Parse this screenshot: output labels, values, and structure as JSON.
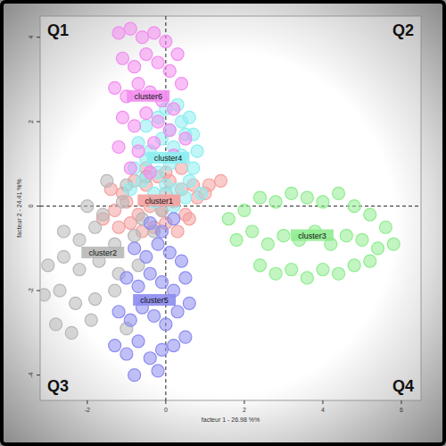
{
  "chart_data": {
    "type": "scatter",
    "x_label": "facteur 1 - 26.98 %%",
    "y_label": "facteur 2 - 24.41 %%",
    "annotations": [
      "Q1",
      "Q2",
      "Q3",
      "Q4"
    ],
    "xlim": [
      -3.2,
      6.5
    ],
    "ylim": [
      -4.6,
      4.5
    ],
    "xticks": [
      -2,
      0,
      2,
      4,
      6
    ],
    "yticks": [
      -4,
      -2,
      0,
      2,
      4
    ],
    "grid": false,
    "marker": "circle",
    "series": [
      {
        "name": "cluster1",
        "color": "#f4a0a0",
        "x": [
          -1.6,
          -1.3,
          -1.0,
          -0.7,
          -0.4,
          -0.1,
          0.2,
          0.5,
          0.8,
          1.1,
          1.4,
          -1.4,
          -1.1,
          -0.8,
          -0.5,
          -0.2,
          0.1,
          0.4,
          0.7,
          1.0,
          -1.2,
          -0.9,
          -0.6,
          -0.3,
          0.0,
          0.3,
          0.6,
          -0.5,
          0.0,
          0.4
        ],
        "y": [
          -0.3,
          -0.1,
          0.1,
          -0.2,
          0.0,
          -0.1,
          0.1,
          -0.2,
          0.2,
          0.5,
          0.6,
          0.4,
          0.3,
          0.6,
          0.5,
          0.7,
          0.6,
          0.4,
          0.5,
          0.3,
          -0.5,
          -0.4,
          -0.6,
          -0.5,
          -0.4,
          -0.6,
          -0.3,
          0.9,
          0.8,
          0.9
        ]
      },
      {
        "name": "cluster2",
        "color": "#b8b8b8",
        "x": [
          -1.5,
          -1.0,
          -0.5,
          0.0,
          -2.0,
          -1.6,
          -1.1,
          -0.6,
          -0.1,
          -2.6,
          -2.2,
          -1.8,
          -1.3,
          -0.8,
          -0.3,
          -3.0,
          -2.6,
          -2.2,
          -1.7,
          -1.2,
          -0.7,
          -3.1,
          -2.7,
          -2.3,
          -1.8,
          -1.3,
          -2.8,
          -2.4,
          -1.9,
          -1.0
        ],
        "y": [
          0.6,
          0.5,
          0.7,
          0.3,
          0.0,
          -0.2,
          0.1,
          -0.3,
          -0.1,
          -0.6,
          -0.8,
          -0.5,
          -0.9,
          -0.7,
          -0.6,
          -1.4,
          -1.2,
          -1.5,
          -1.3,
          -1.6,
          -1.4,
          -2.1,
          -2.0,
          -2.3,
          -2.2,
          -2.0,
          -2.8,
          -3.0,
          -2.7,
          -2.9
        ]
      },
      {
        "name": "cluster3",
        "color": "#90ec90",
        "x": [
          1.6,
          2.0,
          2.4,
          2.8,
          3.2,
          3.6,
          4.0,
          4.4,
          4.8,
          5.2,
          5.6,
          1.8,
          2.2,
          2.6,
          3.0,
          3.4,
          3.8,
          4.2,
          4.6,
          5.0,
          5.4,
          5.8,
          2.4,
          2.8,
          3.2,
          3.6,
          4.0,
          4.4,
          4.8,
          5.2
        ],
        "y": [
          -0.3,
          -0.1,
          0.2,
          0.1,
          0.3,
          0.2,
          0.1,
          0.3,
          0.0,
          -0.2,
          -0.5,
          -0.8,
          -0.6,
          -0.9,
          -0.7,
          -0.8,
          -0.6,
          -0.9,
          -0.7,
          -0.8,
          -1.0,
          -0.9,
          -1.4,
          -1.6,
          -1.5,
          -1.7,
          -1.5,
          -1.6,
          -1.4,
          -1.3
        ]
      },
      {
        "name": "cluster4",
        "color": "#8ceef0",
        "x": [
          -0.9,
          -0.6,
          -0.3,
          0.0,
          0.3,
          0.6,
          0.9,
          -0.8,
          -0.5,
          -0.2,
          0.1,
          0.4,
          0.7,
          -0.7,
          -0.4,
          -0.1,
          0.2,
          0.5,
          0.8,
          -0.5,
          -0.2,
          0.1,
          0.4,
          0.7,
          0.0,
          0.3,
          0.6,
          -0.3,
          0.2,
          0.5
        ],
        "y": [
          0.4,
          0.6,
          0.3,
          0.5,
          0.4,
          0.6,
          0.3,
          0.9,
          1.1,
          0.8,
          1.0,
          1.2,
          0.9,
          1.5,
          1.3,
          1.6,
          1.4,
          1.7,
          1.3,
          1.9,
          2.1,
          1.8,
          2.0,
          1.7,
          2.3,
          2.4,
          2.1,
          0.1,
          0.0,
          0.2
        ]
      },
      {
        "name": "cluster5",
        "color": "#8c8cf0",
        "x": [
          -0.4,
          -0.1,
          0.2,
          -0.8,
          -0.5,
          -0.2,
          0.1,
          0.4,
          -1.0,
          -0.7,
          -0.4,
          -0.1,
          0.2,
          0.5,
          -1.2,
          -0.9,
          -0.6,
          -0.3,
          0.0,
          0.3,
          0.6,
          -1.3,
          -1.0,
          -0.7,
          -0.4,
          -0.1,
          0.2,
          0.5,
          -0.8,
          -0.2
        ],
        "y": [
          -0.4,
          -0.6,
          -0.3,
          -1.0,
          -1.2,
          -0.9,
          -1.1,
          -1.3,
          -1.7,
          -1.9,
          -1.6,
          -1.8,
          -2.0,
          -1.7,
          -2.5,
          -2.7,
          -2.4,
          -2.6,
          -2.8,
          -2.5,
          -2.3,
          -3.3,
          -3.5,
          -3.2,
          -3.6,
          -3.4,
          -3.3,
          -3.1,
          -4.0,
          -3.9
        ]
      },
      {
        "name": "cluster6",
        "color": "#f28cf0",
        "x": [
          -1.2,
          -0.9,
          -0.6,
          -0.3,
          0.0,
          0.3,
          -1.1,
          -0.8,
          -0.5,
          -0.2,
          0.1,
          0.4,
          -1.3,
          -1.0,
          -0.7,
          -0.4,
          -0.1,
          0.2,
          -1.1,
          -0.8,
          -0.5,
          -0.2,
          0.1,
          0.5,
          -1.2,
          -0.7,
          -0.3,
          0.2,
          -0.9,
          -0.4
        ],
        "y": [
          4.1,
          4.2,
          4.0,
          4.1,
          3.9,
          3.6,
          3.5,
          3.3,
          3.6,
          3.4,
          3.2,
          2.9,
          2.8,
          2.6,
          2.9,
          2.7,
          2.5,
          2.3,
          2.1,
          1.9,
          2.2,
          2.0,
          1.8,
          1.6,
          1.4,
          1.3,
          1.5,
          1.2,
          0.9,
          0.8
        ]
      }
    ]
  }
}
